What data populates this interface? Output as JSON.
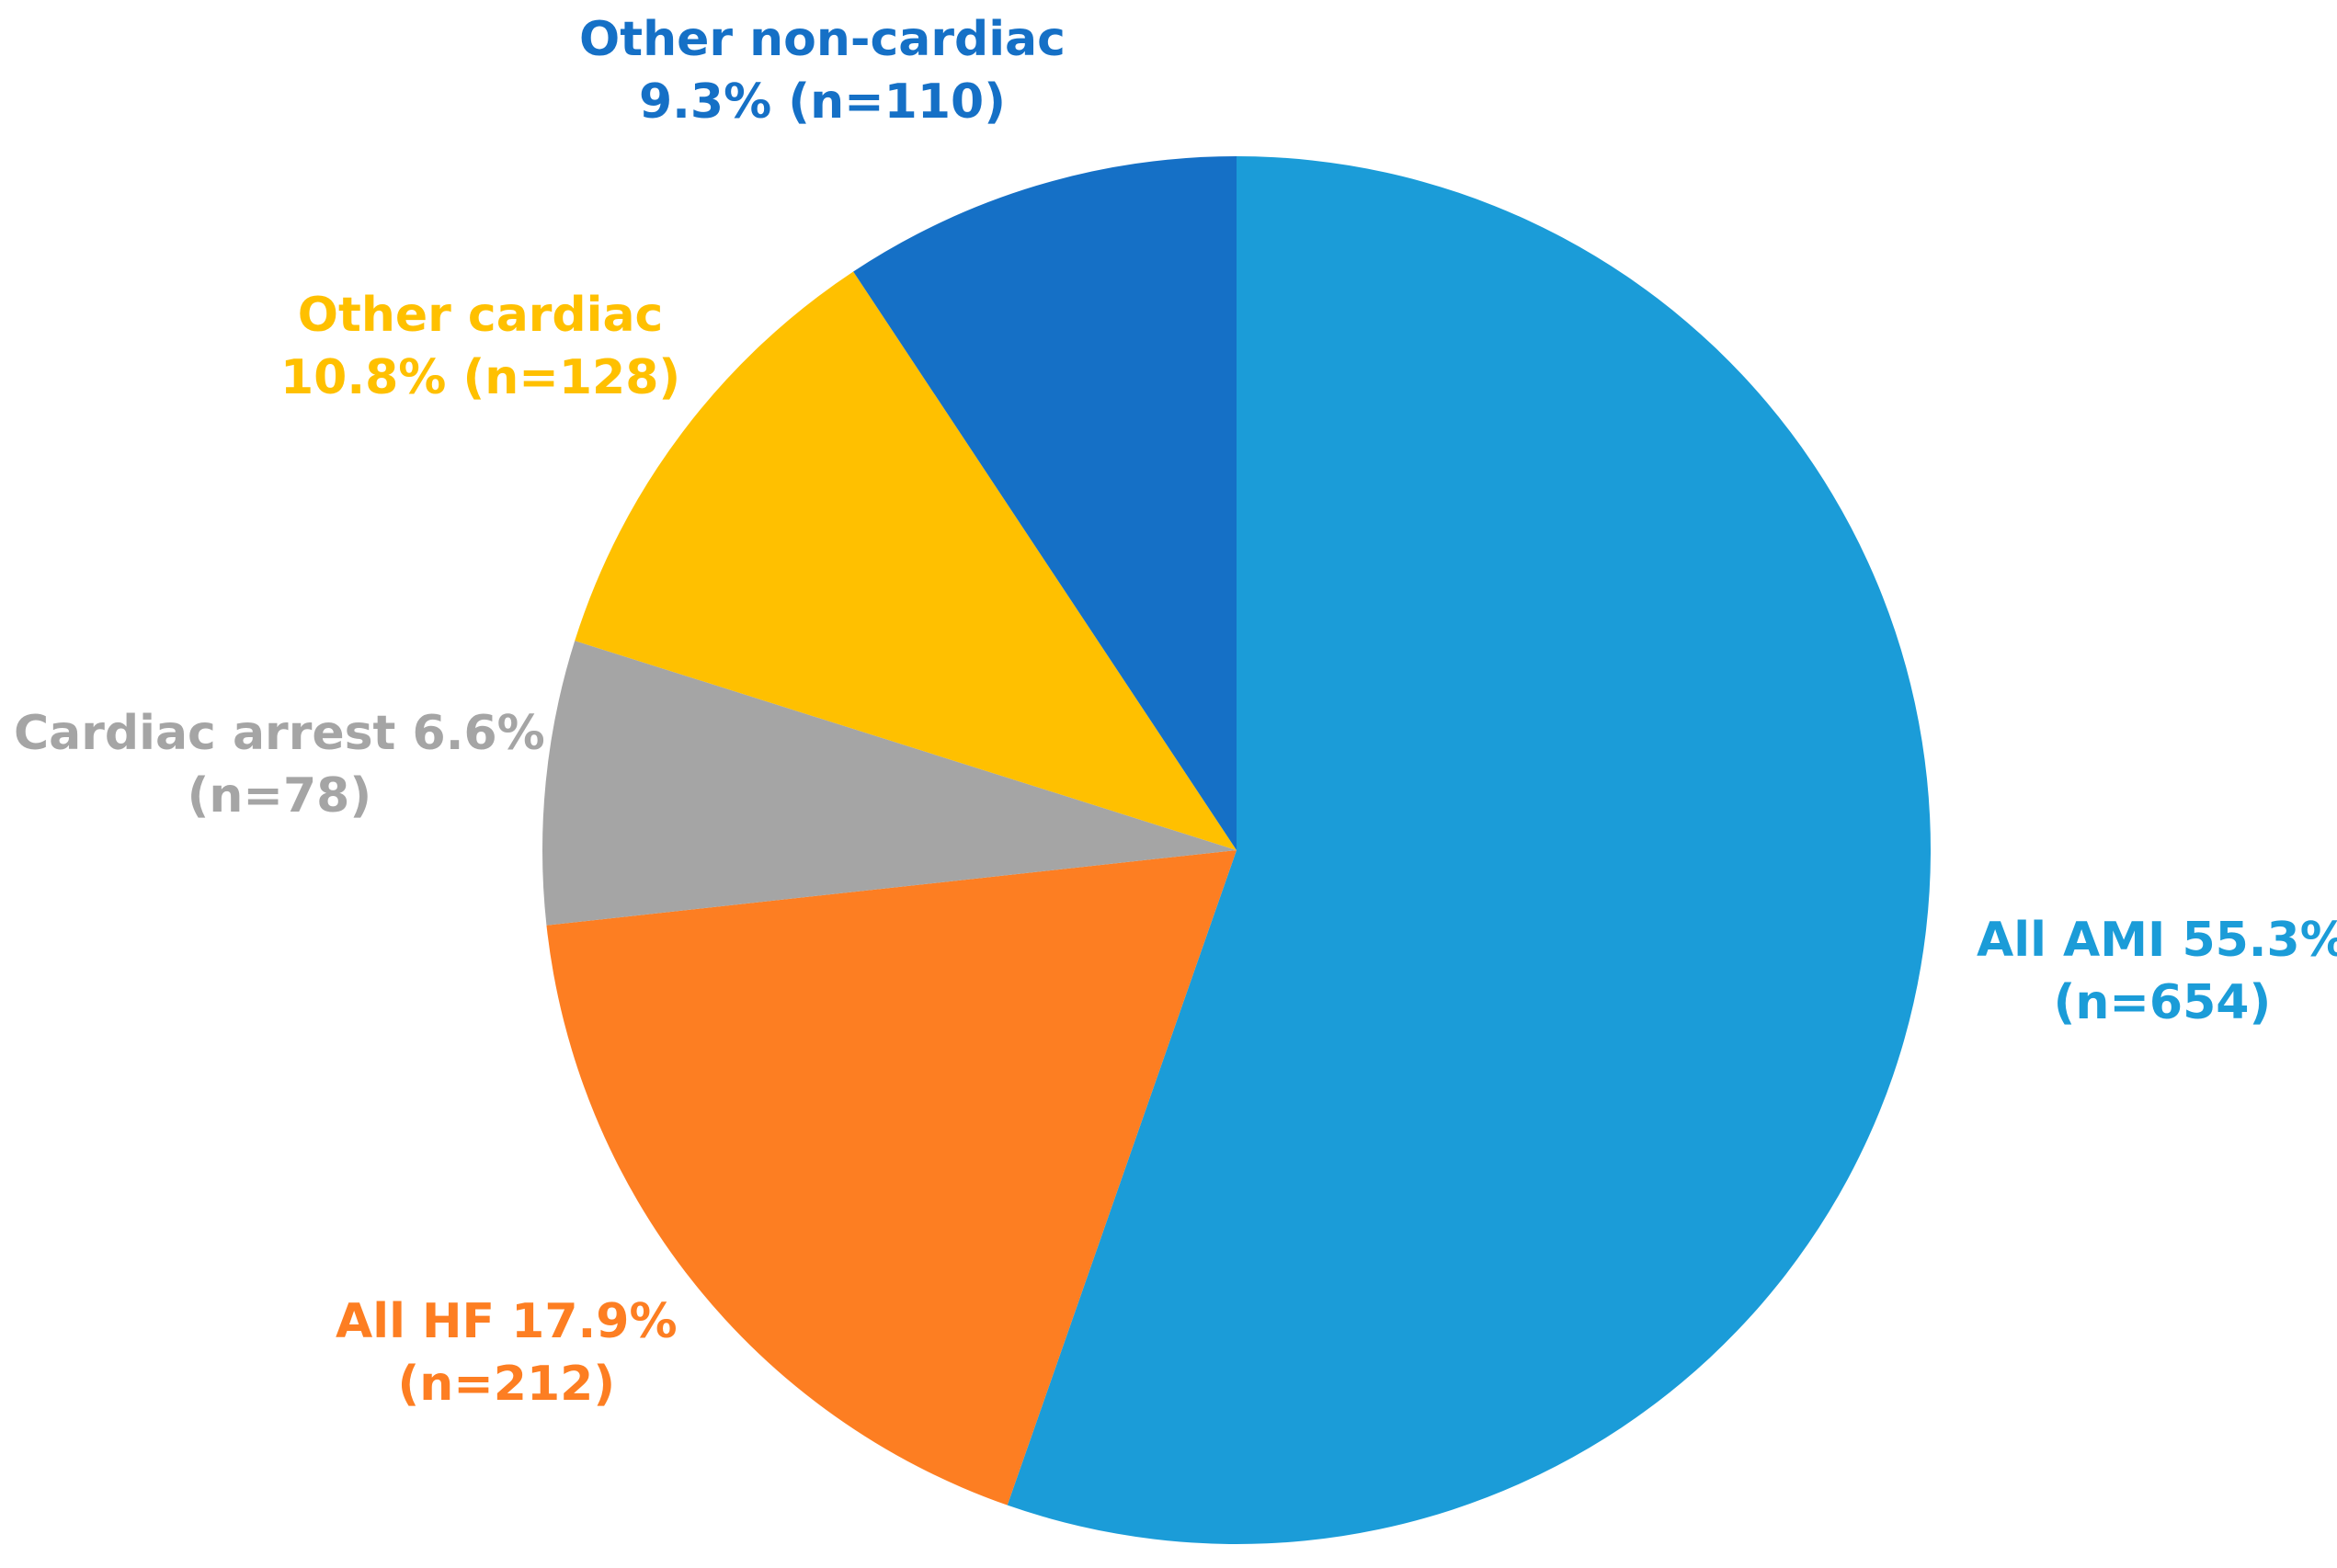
{
  "chart_data": {
    "type": "pie",
    "start_angle_deg": 0,
    "direction": "clockwise",
    "slices": [
      {
        "label": "All AMI",
        "percent": 55.3,
        "n": 654,
        "color": "#1B9CD8",
        "label_line1": "All AMI 55.3%",
        "label_line2": "(n=654)"
      },
      {
        "label": "All HF",
        "percent": 17.9,
        "n": 212,
        "color": "#FD7E22",
        "label_line1": "All HF 17.9%",
        "label_line2": "(n=212)"
      },
      {
        "label": "Cardiac arrest",
        "percent": 6.6,
        "n": 78,
        "color": "#A5A5A5",
        "label_line1": "Cardiac arrest 6.6%",
        "label_line2": "(n=78)"
      },
      {
        "label": "Other cardiac",
        "percent": 10.8,
        "n": 128,
        "color": "#FFC000",
        "label_line1": "Other cardiac",
        "label_line2": "10.8% (n=128)"
      },
      {
        "label": "Other non-cardiac",
        "percent": 9.3,
        "n": 110,
        "color": "#1570C6",
        "label_line1": "Other non-cardiac",
        "label_line2": "9.3% (n=110)"
      }
    ]
  }
}
